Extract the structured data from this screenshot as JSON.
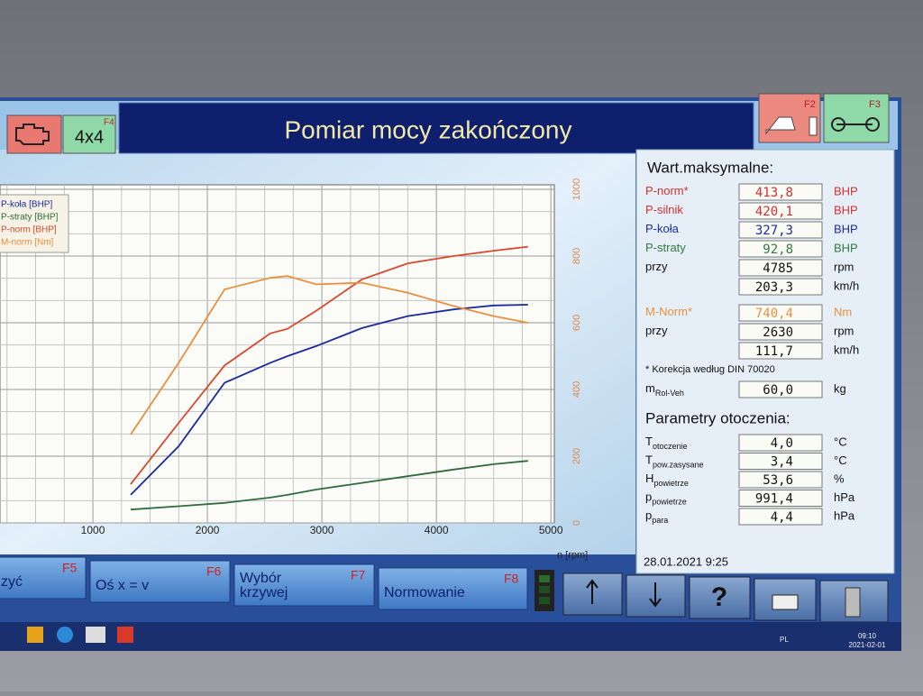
{
  "header": {
    "title": "Pomiar mocy zakończony",
    "left_keys": [
      {
        "label": "",
        "key": ""
      },
      {
        "label": "4x4",
        "key": "F4"
      }
    ],
    "right_keys": [
      {
        "key": "F2"
      },
      {
        "key": "F3"
      }
    ]
  },
  "chart_data": {
    "type": "line",
    "x": [
      1330,
      1750,
      2150,
      2550,
      2700,
      2950,
      3350,
      3750,
      4150,
      4500,
      4800
    ],
    "series": [
      {
        "name": "P-koła [BHP]",
        "color": "#1b2a9c",
        "values": [
          42,
          115,
          210,
          240,
          250,
          265,
          292,
          310,
          320,
          326,
          327
        ]
      },
      {
        "name": "P-straty [BHP]",
        "color": "#2e6b3e",
        "values": [
          20,
          25,
          30,
          38,
          42,
          50,
          60,
          70,
          80,
          88,
          93
        ]
      },
      {
        "name": "P-norm [BHP]",
        "color": "#d8482a",
        "values": [
          58,
          150,
          236,
          284,
          291,
          318,
          365,
          389,
          400,
          408,
          414
        ]
      },
      {
        "name": "M-norm [Nm]",
        "color": "#e8903e",
        "axis": "y2",
        "values": [
          265,
          480,
          700,
          735,
          740,
          715,
          720,
          690,
          650,
          620,
          600
        ]
      }
    ],
    "xlim": [
      0,
      5030
    ],
    "xticks": [
      1000,
      2000,
      3000,
      4000,
      5000
    ],
    "x_label": "n [rpm]",
    "ylim": [
      0,
      500
    ],
    "y2lim": [
      0,
      1000
    ],
    "y2ticks": [
      0,
      200,
      400,
      600,
      800,
      1000
    ],
    "y2_color": "#e08a4a",
    "grid": true
  },
  "panel": {
    "title": "Wart.maksymalne:",
    "group1": [
      {
        "label": "P-norm*",
        "value": "413,8",
        "unit": "BHP",
        "color": "#d03030"
      },
      {
        "label": "P-silnik",
        "value": "420,1",
        "unit": "BHP",
        "color": "#d03030"
      },
      {
        "label": "P-koła",
        "value": "327,3",
        "unit": "BHP",
        "color": "#1b2a9c"
      },
      {
        "label": "P-straty",
        "value": "92,8",
        "unit": "BHP",
        "color": "#2e7b3e"
      },
      {
        "label": "przy",
        "value": "4785",
        "unit": "rpm",
        "color": "#111111"
      },
      {
        "value": "203,3",
        "unit": "km/h",
        "color": "#111111"
      }
    ],
    "group2": [
      {
        "label": "M-Norm*",
        "value": "740,4",
        "unit": "Nm",
        "color": "#e8903e"
      },
      {
        "label": "przy",
        "value": "2630",
        "unit": "rpm",
        "color": "#111111"
      },
      {
        "value": "111,7",
        "unit": "km/h",
        "color": "#111111"
      }
    ],
    "note": "* Korekcja według DIN 70020",
    "mass": {
      "label": "m",
      "sub": "Rol-Veh",
      "value": "60,0",
      "unit": "kg"
    },
    "env_title": "Parametry otoczenia:",
    "env": [
      {
        "label": "T",
        "sub": "otoczenie",
        "value": "4,0",
        "unit": "°C"
      },
      {
        "label": "T",
        "sub": "pow.zasysane",
        "value": "3,4",
        "unit": "°C"
      },
      {
        "label": "H",
        "sub": "powietrze",
        "value": "53,6",
        "unit": "%"
      },
      {
        "label": "p",
        "sub": "powietrze",
        "value": "991,4",
        "unit": "hPa"
      },
      {
        "label": "p",
        "sub": "para",
        "value": "4,4",
        "unit": "hPa"
      }
    ],
    "datetime": "28.01.2021  9:25"
  },
  "footer": {
    "keys": [
      {
        "lines": [
          "zyć"
        ],
        "key": "F5"
      },
      {
        "lines": [
          "Oś x = v"
        ],
        "key": "F6"
      },
      {
        "lines": [
          "Wybór",
          "krzywej"
        ],
        "key": "F7"
      },
      {
        "lines": [
          "Normowanie"
        ],
        "key": "F8"
      }
    ],
    "help": "?"
  },
  "taskbar": {
    "lang": "PL",
    "time": "09:10",
    "date": "2021-02-01"
  }
}
